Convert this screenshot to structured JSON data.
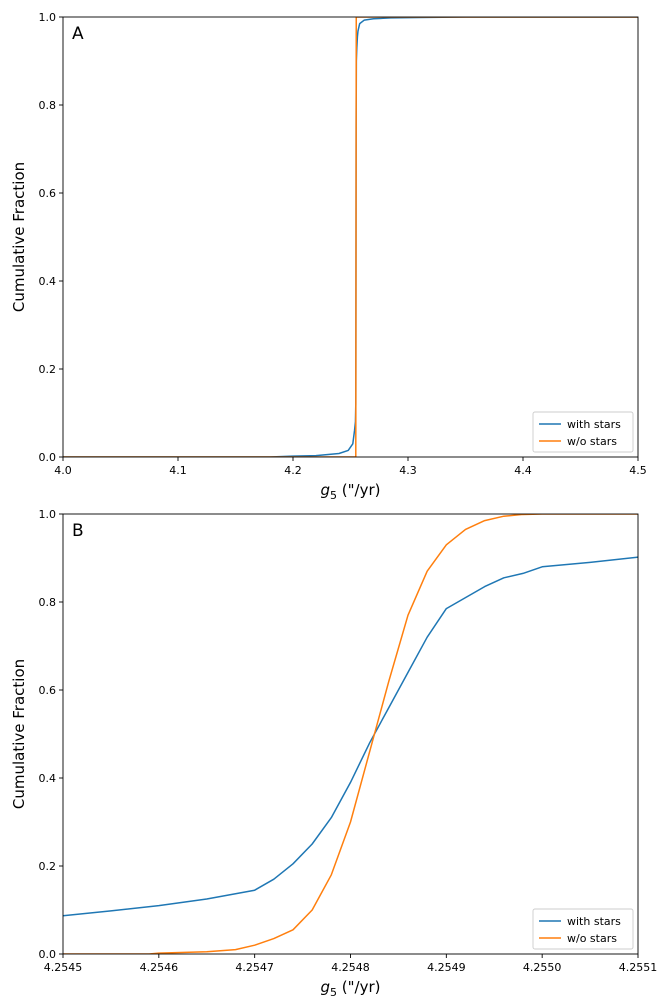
{
  "chart_data": [
    {
      "type": "line",
      "panel_label": "A",
      "xlabel_symbol": "g",
      "xlabel_subscript": "5",
      "xlabel_unit": " (\"/yr)",
      "ylabel": "Cumulative Fraction",
      "xlim": [
        4.0,
        4.5
      ],
      "ylim": [
        0.0,
        1.0
      ],
      "xticks": [
        "4.0",
        "4.1",
        "4.2",
        "4.3",
        "4.4",
        "4.5"
      ],
      "yticks": [
        "0.0",
        "0.2",
        "0.4",
        "0.6",
        "0.8",
        "1.0"
      ],
      "legend_position": "lower-right",
      "series": [
        {
          "name": "with stars",
          "color": "#1f77b4",
          "x": [
            4.0,
            4.18,
            4.2,
            4.22,
            4.24,
            4.248,
            4.252,
            4.2535,
            4.2543,
            4.2546,
            4.2547,
            4.2548,
            4.2549,
            4.2551,
            4.2555,
            4.256,
            4.2565,
            4.258,
            4.262,
            4.27,
            4.285,
            4.31,
            4.35,
            4.5
          ],
          "y": [
            0.0,
            0.0,
            0.002,
            0.003,
            0.008,
            0.015,
            0.03,
            0.06,
            0.08,
            0.12,
            0.3,
            0.5,
            0.75,
            0.9,
            0.93,
            0.955,
            0.968,
            0.985,
            0.993,
            0.996,
            0.998,
            0.999,
            1.0,
            1.0
          ]
        },
        {
          "name": "w/o stars",
          "color": "#ff7f0e",
          "x": [
            4.0,
            4.2546,
            4.2548,
            4.255,
            4.5
          ],
          "y": [
            0.0,
            0.0,
            0.5,
            1.0,
            1.0
          ]
        }
      ]
    },
    {
      "type": "line",
      "panel_label": "B",
      "xlabel_symbol": "g",
      "xlabel_subscript": "5",
      "xlabel_unit": " (\"/yr)",
      "ylabel": "Cumulative Fraction",
      "xlim": [
        4.2545,
        4.2551
      ],
      "ylim": [
        0.0,
        1.0
      ],
      "xticks": [
        "4.2545",
        "4.2546",
        "4.2547",
        "4.2548",
        "4.2549",
        "4.2550",
        "4.2551"
      ],
      "yticks": [
        "0.0",
        "0.2",
        "0.4",
        "0.6",
        "0.8",
        "1.0"
      ],
      "legend_position": "lower-right",
      "series": [
        {
          "name": "with stars",
          "color": "#1f77b4",
          "x": [
            4.2545,
            4.25455,
            4.2546,
            4.25465,
            4.2547,
            4.25472,
            4.25474,
            4.25476,
            4.25478,
            4.2548,
            4.25482,
            4.25484,
            4.25486,
            4.25488,
            4.2549,
            4.25492,
            4.25494,
            4.25496,
            4.25498,
            4.255,
            4.25505,
            4.2551
          ],
          "y": [
            0.087,
            0.098,
            0.11,
            0.125,
            0.145,
            0.17,
            0.205,
            0.25,
            0.31,
            0.39,
            0.48,
            0.56,
            0.64,
            0.72,
            0.785,
            0.81,
            0.835,
            0.855,
            0.865,
            0.88,
            0.89,
            0.902
          ]
        },
        {
          "name": "w/o stars",
          "color": "#ff7f0e",
          "x": [
            4.2545,
            4.25459,
            4.2546,
            4.25465,
            4.25468,
            4.2547,
            4.25472,
            4.25474,
            4.25476,
            4.25478,
            4.2548,
            4.25482,
            4.25484,
            4.25486,
            4.25488,
            4.2549,
            4.25492,
            4.25494,
            4.25496,
            4.25498,
            4.255,
            4.2551
          ],
          "y": [
            0.0,
            0.0,
            0.002,
            0.005,
            0.01,
            0.02,
            0.035,
            0.055,
            0.1,
            0.18,
            0.3,
            0.46,
            0.62,
            0.77,
            0.87,
            0.93,
            0.965,
            0.985,
            0.995,
            0.999,
            1.0,
            1.0
          ]
        }
      ]
    }
  ]
}
